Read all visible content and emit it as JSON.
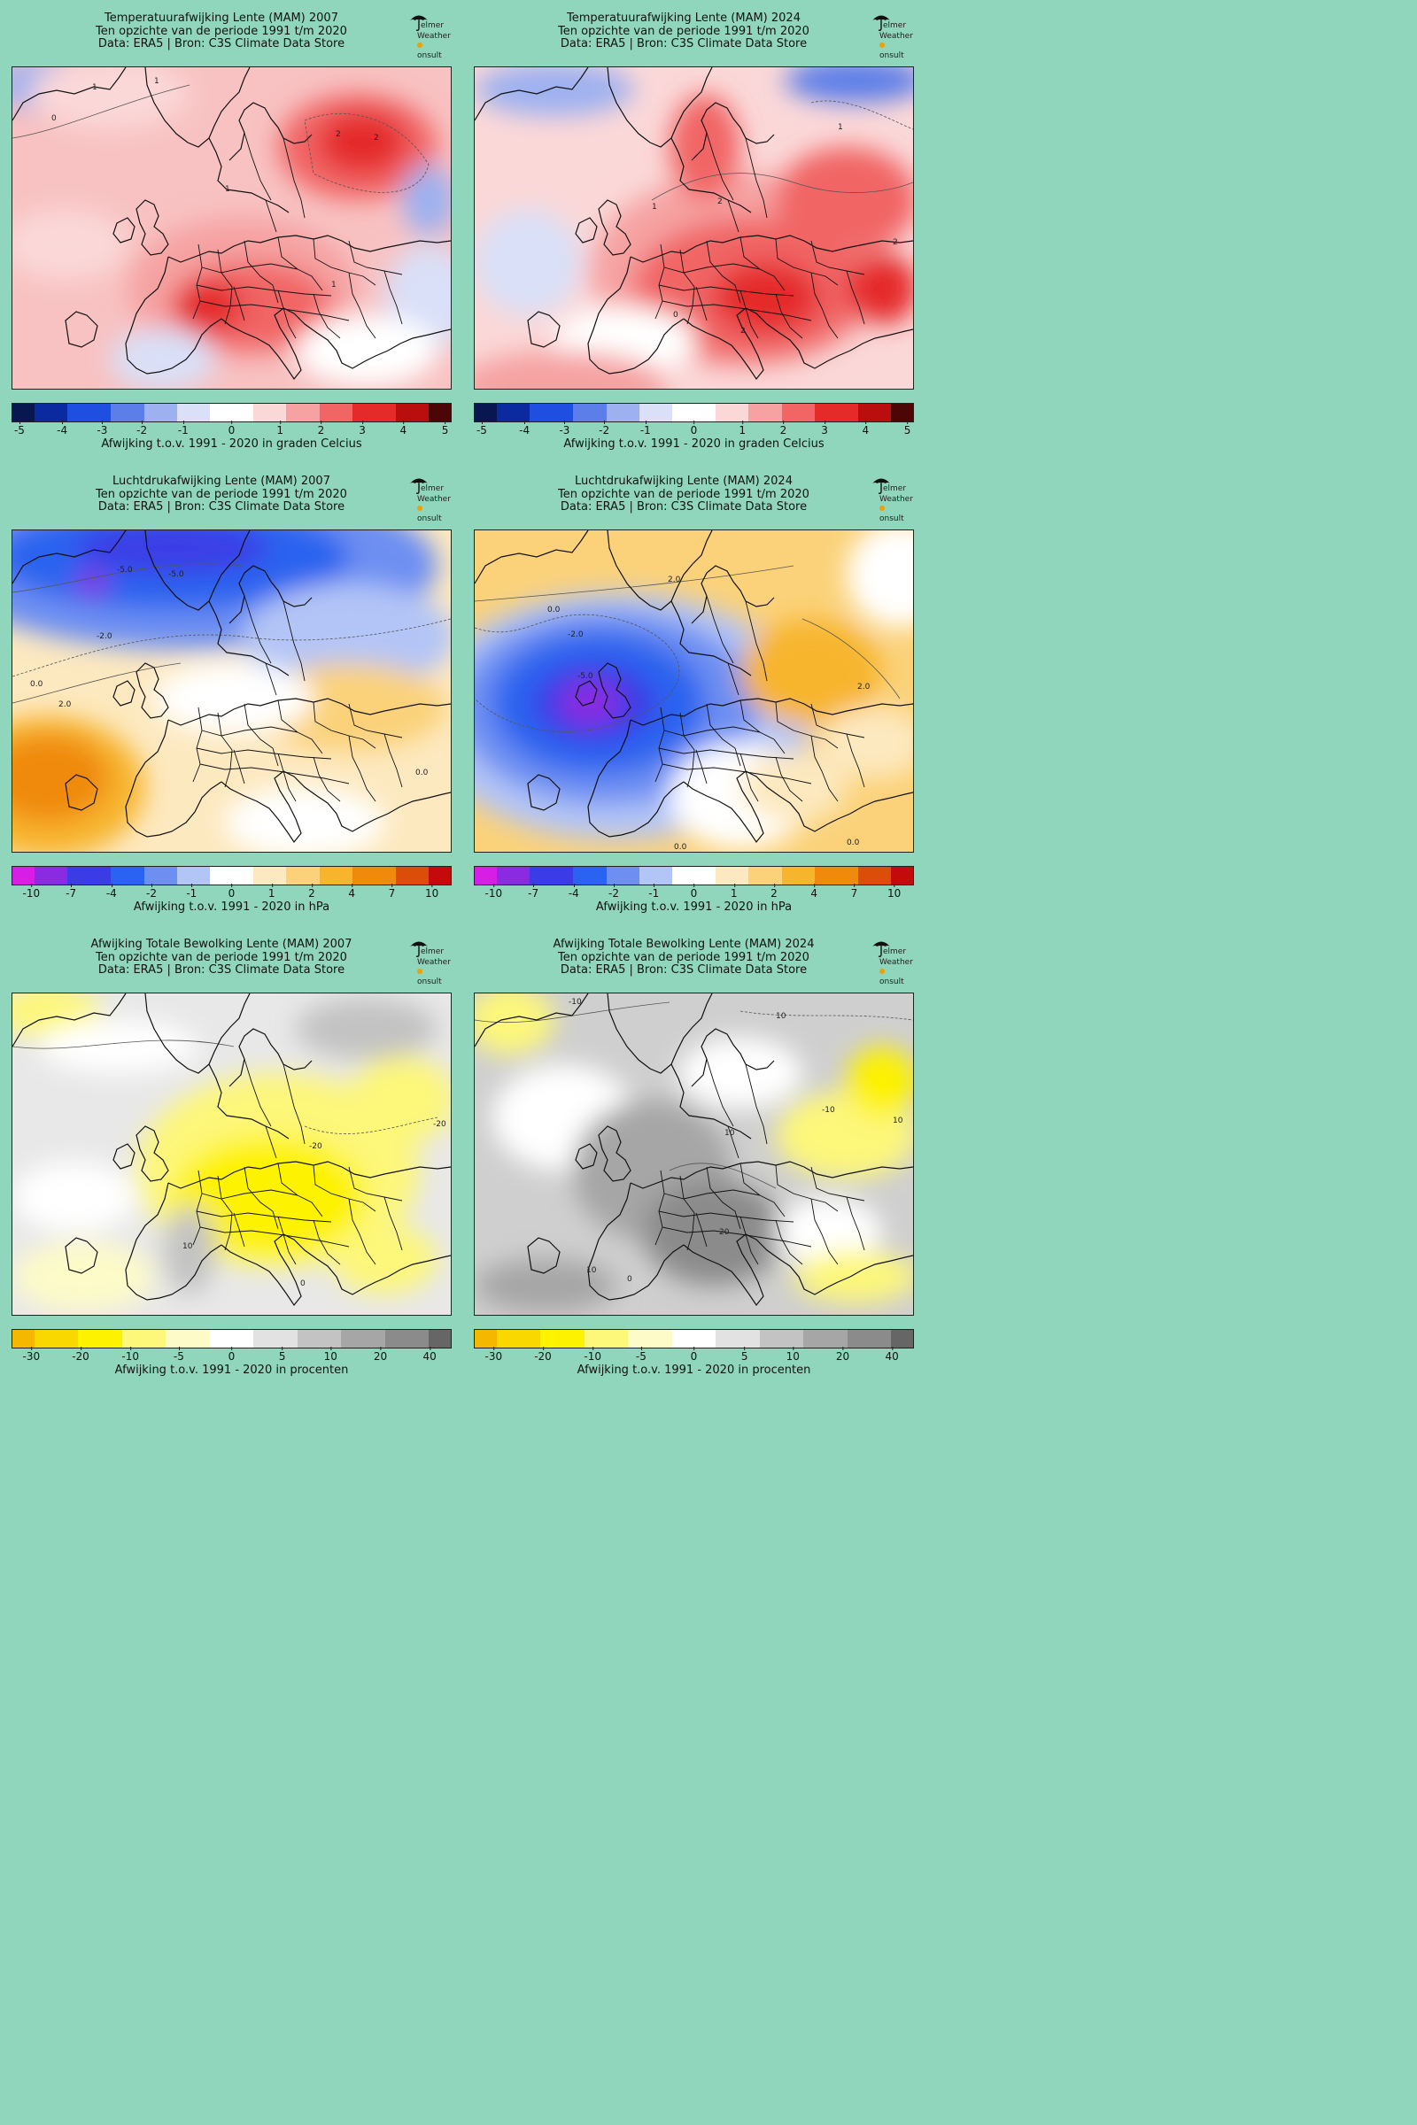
{
  "panels": [
    {
      "title_lines": [
        "Temperatuurafwijking Lente (MAM) 2007",
        "Ten opzichte van de periode 1991 t/m 2020",
        "Data: ERA5 | Bron: C3S Climate Data Store"
      ],
      "logo": {
        "line1": "elmer",
        "line2": "Weather",
        "line3": "onsult"
      },
      "colorbar_ticks": [
        "-5",
        "-4",
        "-3",
        "-2",
        "-1",
        "0",
        "1",
        "2",
        "3",
        "4",
        "5"
      ],
      "colorbar_label": "Afwijking t.o.v. 1991 - 2020 in graden Celcius",
      "contour_labels": [
        "0",
        "1",
        "1",
        "2",
        "2",
        "1",
        "1"
      ]
    },
    {
      "title_lines": [
        "Temperatuurafwijking Lente (MAM) 2024",
        "Ten opzichte van de periode 1991 t/m 2020",
        "Data: ERA5 | Bron: C3S Climate Data Store"
      ],
      "logo": {
        "line1": "elmer",
        "line2": "Weather",
        "line3": "onsult"
      },
      "colorbar_ticks": [
        "-5",
        "-4",
        "-3",
        "-2",
        "-1",
        "0",
        "1",
        "2",
        "3",
        "4",
        "5"
      ],
      "colorbar_label": "Afwijking t.o.v. 1991 - 2020 in graden Celcius",
      "contour_labels": [
        "1",
        "2",
        "1",
        "2",
        "0",
        "2"
      ]
    },
    {
      "title_lines": [
        "Luchtdrukafwijking Lente (MAM) 2007",
        "Ten opzichte van de periode 1991 t/m 2020",
        "Data: ERA5 | Bron: C3S Climate Data Store"
      ],
      "logo": {
        "line1": "elmer",
        "line2": "Weather",
        "line3": "onsult"
      },
      "colorbar_ticks": [
        "-10",
        "-7",
        "-4",
        "-2",
        "-1",
        "0",
        "1",
        "2",
        "4",
        "7",
        "10"
      ],
      "colorbar_label": "Afwijking t.o.v. 1991 - 2020 in hPa",
      "contour_labels": [
        "-5.0",
        "-5.0",
        "-2.0",
        "0.0",
        "2.0",
        "0.0"
      ]
    },
    {
      "title_lines": [
        "Luchtdrukafwijking Lente (MAM) 2024",
        "Ten opzichte van de periode 1991 t/m 2020",
        "Data: ERA5 | Bron: C3S Climate Data Store"
      ],
      "logo": {
        "line1": "elmer",
        "line2": "Weather",
        "line3": "onsult"
      },
      "colorbar_ticks": [
        "-10",
        "-7",
        "-4",
        "-2",
        "-1",
        "0",
        "1",
        "2",
        "4",
        "7",
        "10"
      ],
      "colorbar_label": "Afwijking t.o.v. 1991 - 2020 in hPa",
      "contour_labels": [
        "2.0",
        "0.0",
        "-2.0",
        "-5.0",
        "2.0",
        "0.0",
        "0.0"
      ]
    },
    {
      "title_lines": [
        "Afwijking Totale Bewolking Lente (MAM) 2007",
        "Ten opzichte van de periode 1991 t/m 2020",
        "Data: ERA5 | Bron: C3S Climate Data Store"
      ],
      "logo": {
        "line1": "elmer",
        "line2": "Weather",
        "line3": "onsult"
      },
      "colorbar_ticks": [
        "-30",
        "-20",
        "-10",
        "-5",
        "0",
        "5",
        "10",
        "20",
        "40"
      ],
      "colorbar_label": "Afwijking t.o.v. 1991 - 2020 in procenten",
      "contour_labels": [
        "-20",
        "-20",
        "10",
        "0"
      ]
    },
    {
      "title_lines": [
        "Afwijking Totale Bewolking Lente (MAM) 2024",
        "Ten opzichte van de periode 1991 t/m 2020",
        "Data: ERA5 | Bron: C3S Climate Data Store"
      ],
      "logo": {
        "line1": "elmer",
        "line2": "Weather",
        "line3": "onsult"
      },
      "colorbar_ticks": [
        "-30",
        "-20",
        "-10",
        "-5",
        "0",
        "5",
        "10",
        "20",
        "40"
      ],
      "colorbar_label": "Afwijking t.o.v. 1991 - 2020 in procenten",
      "contour_labels": [
        "-10",
        "10",
        "-10",
        "10",
        "10",
        "20",
        "10",
        "0"
      ]
    }
  ],
  "colors": {
    "background": "#8fd6bd",
    "temperature_scale": [
      "#08174f",
      "#0b2aa0",
      "#1f4fe0",
      "#5b7ee8",
      "#9db1f0",
      "#d9e0f8",
      "#ffffff",
      "#fbd8d8",
      "#f6a2a2",
      "#f16565",
      "#e52a2a",
      "#b80e0e",
      "#4d0606"
    ],
    "pressure_scale": [
      "#d81ee6",
      "#8a2be2",
      "#3b3ce6",
      "#2a63ef",
      "#6d8ff2",
      "#b3c5f6",
      "#ffffff",
      "#fde9c0",
      "#fbd27a",
      "#f7b52e",
      "#f08a0c",
      "#dd4d0a",
      "#c40b0b"
    ],
    "cloud_scale": [
      "#f5b700",
      "#f9d800",
      "#fdf200",
      "#fdf77a",
      "#fdfbc8",
      "#ffffff",
      "#e2e2e2",
      "#c3c3c3",
      "#a6a6a6",
      "#8b8b8b",
      "#666666"
    ]
  }
}
